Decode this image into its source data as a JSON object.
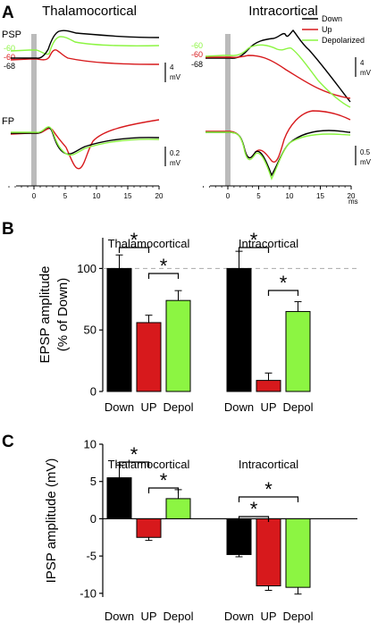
{
  "colors": {
    "down": "#000000",
    "up": "#d7191c",
    "depolarized": "#8cf542",
    "stim": "#bbbbbb",
    "dash": "#aaaaaa"
  },
  "panel_a": {
    "letter": "A",
    "titles": [
      "Thalamocortical",
      "Intracortical"
    ],
    "psp_label": "PSP",
    "fp_label": "FP",
    "potentials": [
      {
        "label": "-60",
        "color": "#8cf542"
      },
      {
        "label": "-60",
        "color": "#d7191c"
      },
      {
        "label": "-68",
        "color": "#000000"
      }
    ],
    "legend": [
      {
        "label": "Down",
        "color": "#000000"
      },
      {
        "label": "Up",
        "color": "#d7191c"
      },
      {
        "label": "Depolarized",
        "color": "#8cf542"
      }
    ],
    "scalebars": {
      "left_psp": {
        "value": "4",
        "unit": "mV"
      },
      "left_fp": {
        "value": "0.2",
        "unit": "mV"
      },
      "right_psp": {
        "value": "4",
        "unit": "mV"
      },
      "right_fp": {
        "value": "0.5",
        "unit": "mV"
      }
    },
    "time_ticks": [
      "0",
      "5",
      "10",
      "15",
      "20"
    ],
    "time_unit": "ms"
  },
  "chart_data": [
    {
      "type": "bar",
      "panel": "B",
      "ylabel": "EPSP amplitude (% of Down)",
      "ylabel_lines": [
        "EPSP amplitude",
        "(% of Down)"
      ],
      "ylim": [
        0,
        125
      ],
      "yticks": [
        0,
        50,
        100
      ],
      "reference_line": 100,
      "groups": [
        {
          "title": "Thalamocortical",
          "categories": [
            "Down",
            "UP",
            "Depol"
          ],
          "values": [
            100,
            56,
            74
          ],
          "errors": [
            11,
            6,
            8
          ]
        },
        {
          "title": "Intracortical",
          "categories": [
            "Down",
            "UP",
            "Depol"
          ],
          "values": [
            100,
            9,
            65
          ],
          "errors": [
            14,
            6,
            8
          ]
        }
      ],
      "significance_symbol": "*"
    },
    {
      "type": "bar",
      "panel": "C",
      "ylabel": "IPSP amplitude (mV)",
      "ylim": [
        -10.5,
        10
      ],
      "yticks": [
        -10,
        -5,
        0,
        5,
        10
      ],
      "groups": [
        {
          "title": "Thalamocortical",
          "categories": [
            "Down",
            "UP",
            "Depol"
          ],
          "values": [
            5.5,
            -2.5,
            2.7
          ],
          "errors": [
            1.7,
            0.4,
            1.2
          ]
        },
        {
          "title": "Intracortical",
          "categories": [
            "Down",
            "UP",
            "Depol"
          ],
          "values": [
            -4.8,
            -9.0,
            -9.2
          ],
          "errors": [
            0.3,
            0.6,
            0.9
          ]
        }
      ],
      "significance_symbol": "*"
    }
  ]
}
